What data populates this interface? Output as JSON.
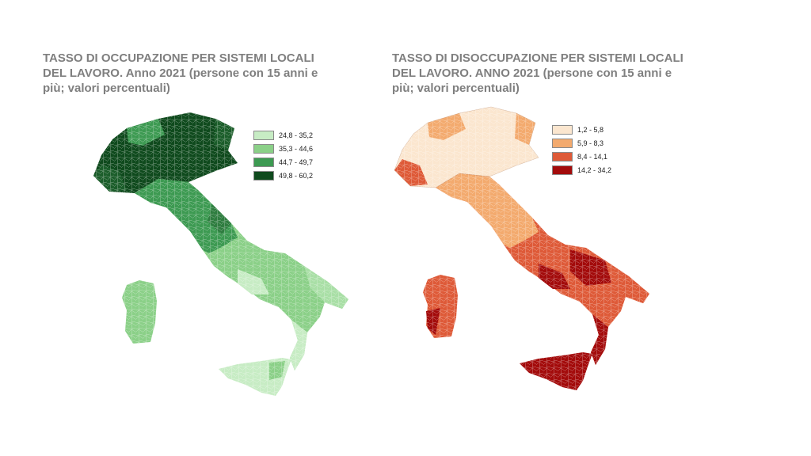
{
  "maps": [
    {
      "title": "TASSO DI OCCUPAZIONE PER SISTEMI LOCALI DEL LAVORO. Anno 2021 (persone con 15 anni e più; valori percentuali)",
      "legend": [
        {
          "label": "24,8 - 35,2",
          "color": "#c7ecc4"
        },
        {
          "label": "35,3 - 44,6",
          "color": "#8bd088"
        },
        {
          "label": "44,7 - 49,7",
          "color": "#3d9a52"
        },
        {
          "label": "49,8 - 60,2",
          "color": "#0f4a1d"
        }
      ]
    },
    {
      "title": "TASSO DI DISOCCUPAZIONE PER SISTEMI LOCALI DEL LAVORO. ANNO 2021 (persone con 15 anni e più; valori percentuali)",
      "legend": [
        {
          "label": "1,2 - 5,8",
          "color": "#fbe6cf"
        },
        {
          "label": "5,9 - 8,3",
          "color": "#f3aa6e"
        },
        {
          "label": "8,4 - 14,1",
          "color": "#de5a38"
        },
        {
          "label": "14,2 - 34,2",
          "color": "#a30b0b"
        }
      ]
    }
  ]
}
